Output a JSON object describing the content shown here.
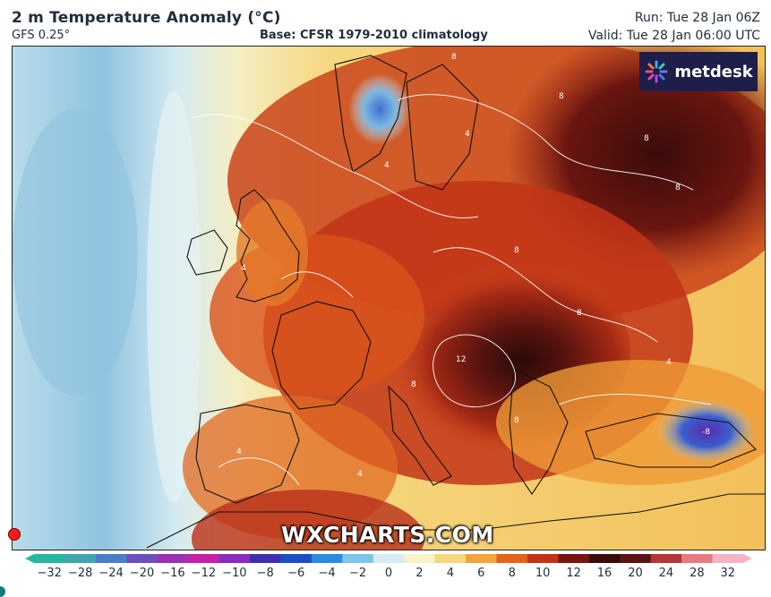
{
  "header": {
    "title": "2 m Temperature Anomaly (°C)",
    "model": "GFS 0.25°",
    "base": "Base: CFSR 1979-2010 climatology",
    "run": "Run: Tue 28 Jan 06Z",
    "valid": "Valid: Tue 28 Jan 06:00 UTC"
  },
  "logo": {
    "text": "metdesk",
    "icon": "metdesk-starburst-icon"
  },
  "watermark": "WXCHARTS.COM",
  "map": {
    "contour_labels": [
      "8",
      "8",
      "4",
      "8",
      "4",
      "8",
      "8",
      "12",
      "8",
      "4",
      "4",
      "8",
      "4",
      "4",
      "8",
      "-8"
    ]
  },
  "colorbar": {
    "ticks": [
      "−32",
      "−28",
      "−24",
      "−20",
      "−16",
      "−12",
      "−10",
      "−8",
      "−6",
      "−4",
      "−2",
      "0",
      "2",
      "4",
      "6",
      "8",
      "10",
      "12",
      "16",
      "20",
      "24",
      "28",
      "32"
    ],
    "colors": [
      "#25b8a0",
      "#3fa6b0",
      "#4a7ec7",
      "#6a4fbd",
      "#9d2fb5",
      "#c421a6",
      "#8b2ac0",
      "#3d2fb0",
      "#1c4fc6",
      "#2a8be0",
      "#7cc6ea",
      "#d6ecf3",
      "#f7f2c8",
      "#f6d77a",
      "#f2a63a",
      "#e5641c",
      "#c23416",
      "#7a1410",
      "#3a0c0a",
      "#5a1414",
      "#b63535",
      "#e77b82",
      "#f4b4c6"
    ]
  },
  "colors": {
    "ocean_anomaly": "#cfe8ef",
    "cold_core": "#7bb6dc",
    "warm": "#f0b64a",
    "hot": "#c2361a",
    "very_hot": "#3c0c0a",
    "coastline": "#111111",
    "contour": "#ffffff"
  }
}
